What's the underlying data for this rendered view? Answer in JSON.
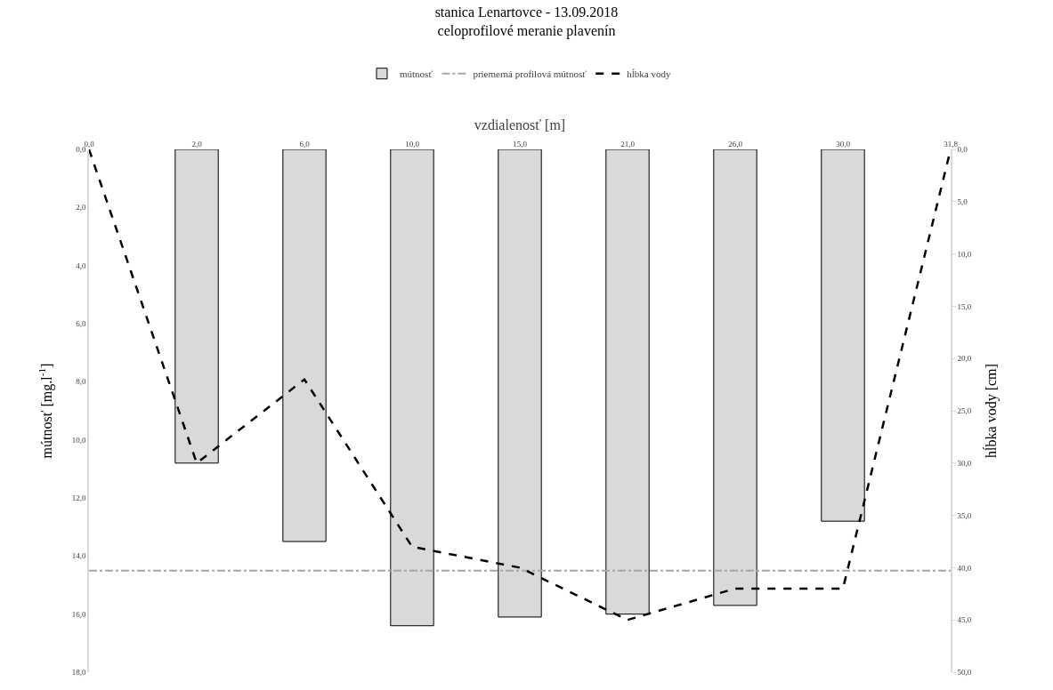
{
  "chart_data": {
    "type": "bar",
    "title": "stanica Lenartovce - 13.09.2018",
    "subtitle": "celoprofilové meranie plavenín",
    "xlabel": "vzdialenosť [m]",
    "ylabel": "mútnosť [mg.l$^{-1}$]",
    "y2label": "hĺbka vody [cm]",
    "categories": [
      "0,0",
      "2,0",
      "6,0",
      "10,0",
      "15,0",
      "21,0",
      "26,0",
      "30,0",
      "31,8"
    ],
    "series": [
      {
        "name": "mútnosť",
        "color": "#d9d9d9",
        "values": [
          null,
          10.8,
          13.5,
          16.4,
          16.1,
          16.0,
          15.7,
          12.8,
          null
        ]
      },
      {
        "name": "hĺbka vody",
        "type": "line",
        "axis": "y2",
        "line_style": "dashed",
        "color": "#000000",
        "values": [
          0,
          30,
          22,
          38,
          40,
          45,
          42,
          42,
          0
        ]
      }
    ],
    "ref_lines": [
      {
        "axis": "y",
        "value": 14.5,
        "label": "priemerná profilová mútnosť",
        "color": "#a6a6a6",
        "line_style": "dashdot"
      }
    ],
    "ylim": [
      18,
      0
    ],
    "yticks": [
      {
        "value": 0,
        "label": "0,0"
      },
      {
        "value": 2,
        "label": "2,0"
      },
      {
        "value": 4,
        "label": "4,0"
      },
      {
        "value": 6,
        "label": "6,0"
      },
      {
        "value": 8,
        "label": "8,0"
      },
      {
        "value": 10,
        "label": "10,0"
      },
      {
        "value": 12,
        "label": "12,0"
      },
      {
        "value": 14,
        "label": "14,0"
      },
      {
        "value": 16,
        "label": "16,0"
      },
      {
        "value": 18,
        "label": "18,0"
      }
    ],
    "y2lim": [
      50,
      0
    ],
    "y2ticks": [
      {
        "value": 0,
        "label": "0,0"
      },
      {
        "value": 5,
        "label": "5,0"
      },
      {
        "value": 10,
        "label": "10,0"
      },
      {
        "value": 15,
        "label": "15,0"
      },
      {
        "value": 20,
        "label": "20,0"
      },
      {
        "value": 25,
        "label": "25,0"
      },
      {
        "value": 30,
        "label": "30,0"
      },
      {
        "value": 35,
        "label": "35,0"
      },
      {
        "value": 40,
        "label": "40,0"
      },
      {
        "value": 45,
        "label": "45,0"
      },
      {
        "value": 50,
        "label": "50,0"
      }
    ],
    "grid": false,
    "legend": "top",
    "marker": "none"
  }
}
